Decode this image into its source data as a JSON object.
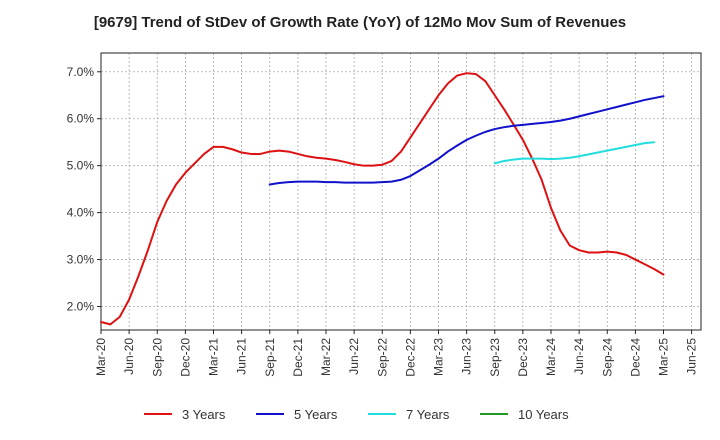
{
  "chart_data": {
    "type": "line",
    "title": "[9679]  Trend of StDev of Growth Rate (YoY) of 12Mo Mov Sum of Revenues",
    "xlabel": "",
    "ylabel": "",
    "ylim": [
      1.5,
      7.4
    ],
    "yticks": [
      2.0,
      3.0,
      4.0,
      5.0,
      6.0,
      7.0
    ],
    "ytick_labels": [
      "2.0%",
      "3.0%",
      "4.0%",
      "5.0%",
      "6.0%",
      "7.0%"
    ],
    "x_start": "Mar-20",
    "x_count": 64,
    "xtick_labels": [
      "Mar-20",
      "Jun-20",
      "Sep-20",
      "Dec-20",
      "Mar-21",
      "Jun-21",
      "Sep-21",
      "Dec-21",
      "Mar-22",
      "Jun-22",
      "Sep-22",
      "Dec-22",
      "Mar-23",
      "Jun-23",
      "Sep-23",
      "Dec-23",
      "Mar-24",
      "Jun-24",
      "Sep-24",
      "Dec-24",
      "Mar-25",
      "Jun-25"
    ],
    "grid": true,
    "legend_position": "bottom",
    "series": [
      {
        "name": "3 Years",
        "color": "#dd1111",
        "start_index": 0,
        "values": [
          1.67,
          1.62,
          1.78,
          2.15,
          2.65,
          3.2,
          3.8,
          4.25,
          4.6,
          4.85,
          5.05,
          5.25,
          5.4,
          5.4,
          5.35,
          5.28,
          5.25,
          5.25,
          5.3,
          5.32,
          5.3,
          5.25,
          5.2,
          5.17,
          5.15,
          5.12,
          5.08,
          5.03,
          5.0,
          5.0,
          5.02,
          5.1,
          5.3,
          5.6,
          5.9,
          6.2,
          6.5,
          6.75,
          6.92,
          6.97,
          6.95,
          6.8,
          6.5,
          6.2,
          5.88,
          5.55,
          5.15,
          4.7,
          4.1,
          3.62,
          3.3,
          3.2,
          3.15,
          3.15,
          3.17,
          3.15,
          3.1,
          3.0,
          2.9,
          2.8,
          2.68
        ]
      },
      {
        "name": "5 Years",
        "color": "#1111cc",
        "start_index": 18,
        "values": [
          4.6,
          4.63,
          4.65,
          4.66,
          4.66,
          4.66,
          4.65,
          4.65,
          4.64,
          4.64,
          4.64,
          4.64,
          4.65,
          4.66,
          4.7,
          4.78,
          4.9,
          5.02,
          5.15,
          5.3,
          5.43,
          5.55,
          5.64,
          5.72,
          5.78,
          5.82,
          5.85,
          5.87,
          5.89,
          5.91,
          5.93,
          5.96,
          6.0,
          6.05,
          6.1,
          6.15,
          6.2,
          6.25,
          6.3,
          6.35,
          6.4,
          6.44,
          6.48
        ]
      },
      {
        "name": "7 Years",
        "color": "#22dddd",
        "start_index": 42,
        "values": [
          5.05,
          5.1,
          5.13,
          5.15,
          5.15,
          5.15,
          5.14,
          5.15,
          5.17,
          5.2,
          5.24,
          5.28,
          5.32,
          5.36,
          5.4,
          5.44,
          5.48,
          5.5
        ]
      },
      {
        "name": "10 Years",
        "color": "#229922",
        "start_index": 0,
        "values": []
      }
    ]
  }
}
